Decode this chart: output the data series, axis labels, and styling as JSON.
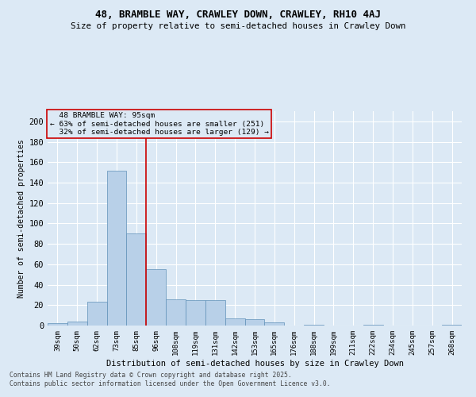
{
  "title": "48, BRAMBLE WAY, CRAWLEY DOWN, CRAWLEY, RH10 4AJ",
  "subtitle": "Size of property relative to semi-detached houses in Crawley Down",
  "xlabel": "Distribution of semi-detached houses by size in Crawley Down",
  "ylabel": "Number of semi-detached properties",
  "footer_line1": "Contains HM Land Registry data © Crown copyright and database right 2025.",
  "footer_line2": "Contains public sector information licensed under the Open Government Licence v3.0.",
  "property_label": "48 BRAMBLE WAY: 95sqm",
  "pct_smaller": 63,
  "pct_smaller_count": 251,
  "pct_larger": 32,
  "pct_larger_count": 129,
  "bin_labels": [
    "39sqm",
    "50sqm",
    "62sqm",
    "73sqm",
    "85sqm",
    "96sqm",
    "108sqm",
    "119sqm",
    "131sqm",
    "142sqm",
    "153sqm",
    "165sqm",
    "176sqm",
    "188sqm",
    "199sqm",
    "211sqm",
    "222sqm",
    "234sqm",
    "245sqm",
    "257sqm",
    "268sqm"
  ],
  "bar_values": [
    2,
    4,
    23,
    152,
    90,
    55,
    26,
    25,
    25,
    7,
    6,
    3,
    0,
    1,
    0,
    0,
    1,
    0,
    0,
    0,
    1
  ],
  "bar_color": "#b8d0e8",
  "bar_edge_color": "#6090b8",
  "vline_color": "#cc0000",
  "vline_bin_index": 4.5,
  "background_color": "#dce9f5",
  "grid_color": "#ffffff",
  "annotation_box_color": "#cc0000",
  "ylim": [
    0,
    210
  ],
  "yticks": [
    0,
    20,
    40,
    60,
    80,
    100,
    120,
    140,
    160,
    180,
    200
  ]
}
